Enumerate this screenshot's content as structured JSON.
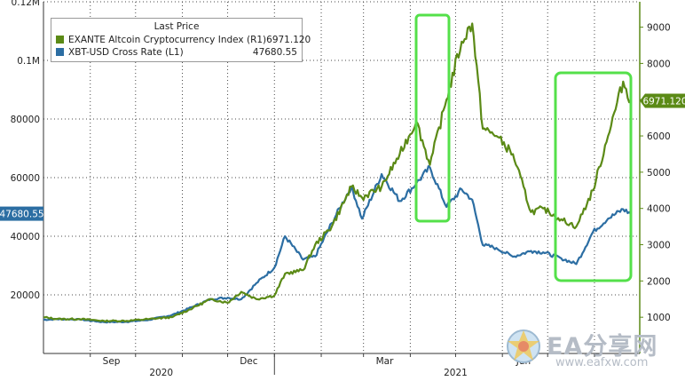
{
  "chart_data": {
    "type": "line",
    "legend": {
      "title": "Last Price",
      "placement": "top-left",
      "entries": [
        {
          "name": "EXANTE Altcoin Cryptocurrency Index  (R1)",
          "value": "6971.120",
          "color": "#5b8a16"
        },
        {
          "name": "XBT-USD Cross Rate  (L1)",
          "value": "47680.55",
          "color": "#2c6ea3"
        }
      ]
    },
    "x_axis": {
      "month_labels": [
        "Sep",
        "Dec",
        "Mar",
        "Jun"
      ],
      "year_labels": [
        "2020",
        "2021"
      ],
      "range": [
        "2020-08-01",
        "2021-08-31"
      ]
    },
    "y_left": {
      "ticks": [
        "20000",
        "40000",
        "60000",
        "80000",
        "0.1M",
        "0.12M"
      ],
      "range": [
        0,
        120000
      ]
    },
    "y_right": {
      "ticks": [
        "1000",
        "2000",
        "3000",
        "4000",
        "5000",
        "6000",
        "7000",
        "8000",
        "9000"
      ],
      "range": [
        0,
        9700
      ]
    },
    "last_value_labels": {
      "left": "47680.55",
      "right": "6971.120"
    },
    "grid": true,
    "series": [
      {
        "name": "XBT-USD Cross Rate",
        "axis": "left",
        "color": "#2c6ea3",
        "x": [
          "2020-08-01",
          "2020-08-10",
          "2020-08-25",
          "2020-09-10",
          "2020-09-25",
          "2020-10-10",
          "2020-10-25",
          "2020-11-05",
          "2020-11-20",
          "2020-12-01",
          "2020-12-10",
          "2020-12-20",
          "2021-01-01",
          "2021-01-08",
          "2021-01-20",
          "2021-01-28",
          "2021-02-08",
          "2021-02-21",
          "2021-02-28",
          "2021-03-13",
          "2021-03-25",
          "2021-04-05",
          "2021-04-14",
          "2021-04-25",
          "2021-05-05",
          "2021-05-12",
          "2021-05-19",
          "2021-05-28",
          "2021-06-08",
          "2021-06-20",
          "2021-06-28",
          "2021-07-10",
          "2021-07-20",
          "2021-07-31",
          "2021-08-10",
          "2021-08-20",
          "2021-08-25"
        ],
        "values": [
          11500,
          11700,
          11600,
          10700,
          10800,
          11500,
          13100,
          15300,
          18600,
          19000,
          18500,
          24000,
          29300,
          40000,
          32000,
          33100,
          44500,
          57000,
          46000,
          61200,
          52000,
          58000,
          63500,
          50000,
          56000,
          52500,
          37000,
          36000,
          33000,
          35000,
          34500,
          32500,
          30500,
          41500,
          46000,
          49200,
          47700
        ]
      },
      {
        "name": "EXANTE Altcoin Cryptocurrency Index",
        "axis": "right",
        "color": "#5b8a16",
        "x": [
          "2020-08-01",
          "2020-08-10",
          "2020-08-25",
          "2020-09-10",
          "2020-09-25",
          "2020-10-10",
          "2020-10-25",
          "2020-11-05",
          "2020-11-20",
          "2020-12-01",
          "2020-12-10",
          "2020-12-20",
          "2021-01-01",
          "2021-01-08",
          "2021-01-20",
          "2021-01-28",
          "2021-02-08",
          "2021-02-21",
          "2021-02-28",
          "2021-03-13",
          "2021-03-25",
          "2021-04-05",
          "2021-04-14",
          "2021-04-25",
          "2021-05-05",
          "2021-05-12",
          "2021-05-19",
          "2021-05-28",
          "2021-06-08",
          "2021-06-20",
          "2021-06-28",
          "2021-07-10",
          "2021-07-20",
          "2021-07-31",
          "2021-08-10",
          "2021-08-20",
          "2021-08-25"
        ],
        "values": [
          1000,
          950,
          950,
          900,
          900,
          950,
          1000,
          1200,
          1500,
          1400,
          1700,
          1500,
          1600,
          2200,
          2300,
          3000,
          3500,
          4600,
          4300,
          4600,
          5500,
          6400,
          5200,
          7000,
          8600,
          9100,
          6200,
          6000,
          5500,
          3900,
          4000,
          3700,
          3500,
          4500,
          6000,
          7500,
          6970
        ]
      }
    ]
  },
  "watermark": {
    "text": "EA分享网",
    "url": "www.eafxw.com"
  }
}
